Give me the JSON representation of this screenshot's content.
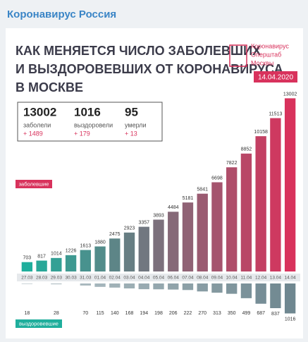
{
  "header": {
    "channel": "Коронавирус Россия"
  },
  "chart_data": {
    "type": "bar",
    "title": [
      "КАК МЕНЯЕТСЯ ЧИСЛО ЗАБОЛЕВШИХ",
      "И ВЫЗДОРОВЕВШИХ ОТ КОРОНАВИРУСА",
      "В МОСКВЕ"
    ],
    "logo": [
      "Коронавирус",
      "Оперштаб",
      "Москвы"
    ],
    "date": "14.04.2020",
    "stats": [
      {
        "value": "13002",
        "label": "заболели",
        "change": "+ 1489"
      },
      {
        "value": "1016",
        "label": "выздоровели",
        "change": "+ 179"
      },
      {
        "value": "95",
        "label": "умерли",
        "change": "+ 13"
      }
    ],
    "categories": [
      "27.03",
      "28.03",
      "29.03",
      "30.03",
      "31.03",
      "01.04",
      "02.04",
      "03.04",
      "04.04",
      "05.04",
      "06.04",
      "07.04",
      "08.04",
      "09.04",
      "10.04",
      "11.04",
      "12.04",
      "13.04",
      "14.04"
    ],
    "series": [
      {
        "name": "заболевшие",
        "color": "#d8325c",
        "color_from": "#1fae9c",
        "values": [
          703,
          817,
          1014,
          1226,
          1613,
          1880,
          2475,
          2923,
          3357,
          3893,
          4484,
          5181,
          5841,
          6698,
          7822,
          8852,
          10158,
          11513,
          13002
        ]
      },
      {
        "name": "выздоровевшие",
        "color": "#6f8790",
        "color_from": "#b9c6cb",
        "axis": "y2",
        "values": [
          18,
          null,
          28,
          null,
          70,
          115,
          140,
          168,
          194,
          198,
          206,
          222,
          270,
          313,
          350,
          499,
          687,
          837,
          1016
        ]
      }
    ],
    "ylim": [
      0,
      13500
    ],
    "y2lim": [
      0,
      1100
    ]
  }
}
